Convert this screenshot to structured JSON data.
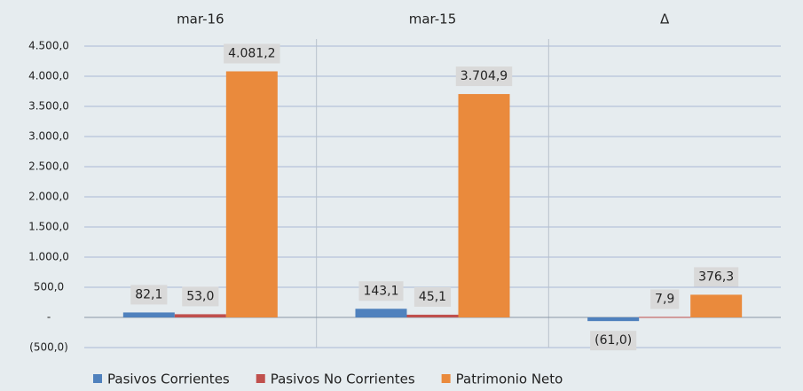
{
  "chart_data": {
    "type": "bar",
    "categories": [
      "mar-16",
      "mar-15",
      "Δ"
    ],
    "series": [
      {
        "name": "Pasivos Corrientes",
        "color": "#4f81bd",
        "values": [
          82.1,
          143.1,
          -61.0
        ],
        "value_labels": [
          "82,1",
          "143,1",
          "(61,0)"
        ]
      },
      {
        "name": "Pasivos No Corrientes",
        "color": "#c0504d",
        "values": [
          53.0,
          45.1,
          7.9
        ],
        "value_labels": [
          "53,0",
          "45,1",
          "7,9"
        ]
      },
      {
        "name": "Patrimonio Neto",
        "color": "#ea8a3c",
        "values": [
          4081.2,
          3704.9,
          376.3
        ],
        "value_labels": [
          "4.081,2",
          "3.704,9",
          "376,3"
        ]
      }
    ],
    "ylim": [
      -500,
      4500
    ],
    "yticks": [
      {
        "value": -500,
        "label": "(500,0)"
      },
      {
        "value": 0,
        "label": "-"
      },
      {
        "value": 500,
        "label": "500,0"
      },
      {
        "value": 1000,
        "label": "1.000,0"
      },
      {
        "value": 1500,
        "label": "1.500,0"
      },
      {
        "value": 2000,
        "label": "2.000,0"
      },
      {
        "value": 2500,
        "label": "2.500,0"
      },
      {
        "value": 3000,
        "label": "3.000,0"
      },
      {
        "value": 3500,
        "label": "3.500,0"
      },
      {
        "value": 4000,
        "label": "4.000,0"
      },
      {
        "value": 4500,
        "label": "4.500,0"
      }
    ],
    "grid": true
  }
}
